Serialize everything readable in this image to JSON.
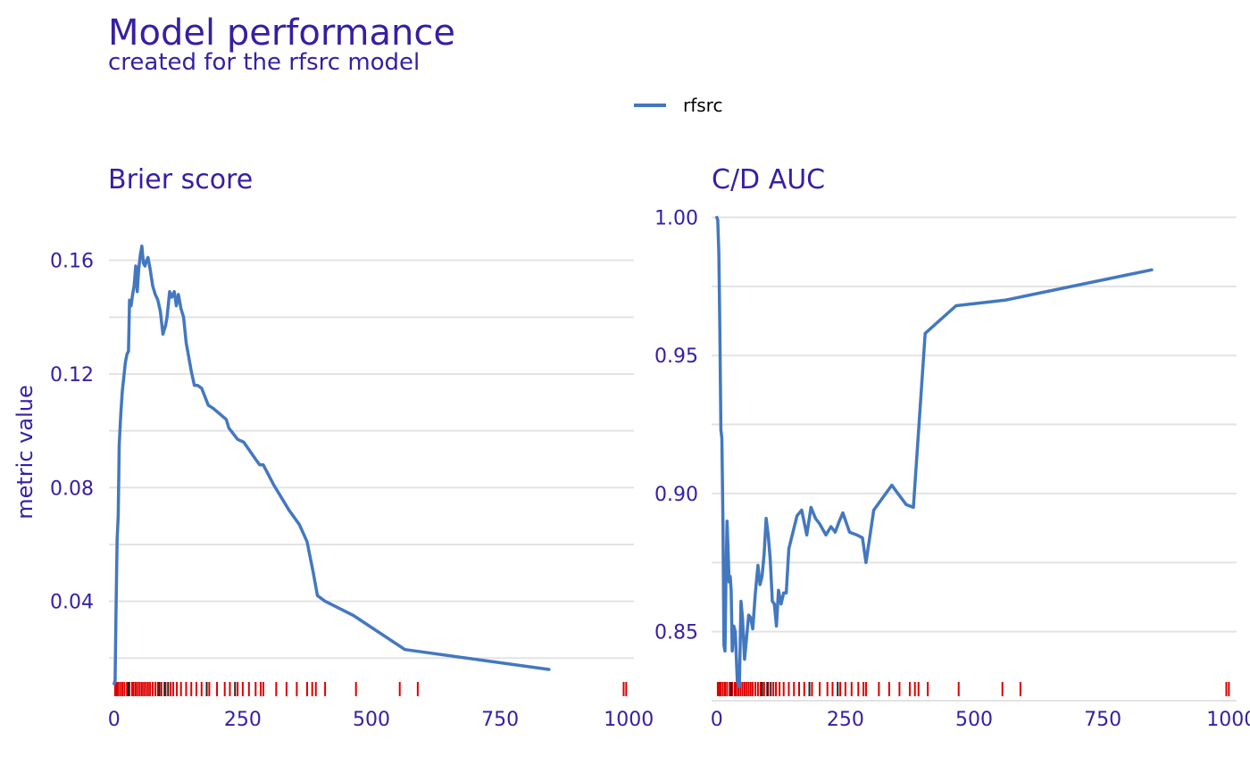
{
  "figure": {
    "title": "Model performance",
    "subtitle": "created for the rfsrc model"
  },
  "legend": {
    "label": "rfsrc",
    "color": "#4378bf",
    "position": "top"
  },
  "colors": {
    "text": "#371ea3",
    "line": "#4378bf",
    "rug_event": "#dd0000",
    "rug_censored": "#222222",
    "grid": "#e3e3e5"
  },
  "chart_data": [
    {
      "type": "line",
      "title": "Brier score",
      "xlabel": "",
      "ylabel": "metric value",
      "xlim": [
        -10,
        1010
      ],
      "ylim": [
        0.005,
        0.18
      ],
      "xticks": [
        0,
        250,
        500,
        750,
        1000
      ],
      "xtick_labels": [
        "0",
        "250",
        "500",
        "750",
        "1000"
      ],
      "yticks": [
        0.04,
        0.08,
        0.12,
        0.16
      ],
      "ytick_labels": [
        "0.04",
        "0.08",
        "0.12",
        "0.16"
      ],
      "yminor": [
        0.02,
        0.06,
        0.1,
        0.14
      ],
      "grid": true,
      "series": [
        {
          "name": "rfsrc",
          "x": [
            0,
            2,
            4,
            6,
            8,
            10,
            13,
            16,
            19,
            22,
            25,
            28,
            30,
            33,
            36,
            39,
            42,
            45,
            48,
            51,
            54,
            57,
            60,
            63,
            66,
            70,
            75,
            80,
            85,
            90,
            95,
            100,
            103,
            108,
            112,
            117,
            121,
            125,
            130,
            135,
            140,
            145,
            150,
            156,
            162,
            170,
            183,
            192,
            205,
            218,
            223,
            240,
            252,
            275,
            283,
            290,
            310,
            340,
            360,
            375,
            387,
            395,
            410,
            465,
            565,
            845
          ],
          "y": [
            0.011,
            0.012,
            0.04,
            0.062,
            0.07,
            0.095,
            0.106,
            0.114,
            0.119,
            0.124,
            0.127,
            0.128,
            0.146,
            0.144,
            0.148,
            0.151,
            0.158,
            0.149,
            0.157,
            0.162,
            0.165,
            0.159,
            0.158,
            0.16,
            0.161,
            0.157,
            0.151,
            0.148,
            0.146,
            0.142,
            0.134,
            0.137,
            0.14,
            0.149,
            0.147,
            0.149,
            0.144,
            0.148,
            0.143,
            0.14,
            0.131,
            0.126,
            0.121,
            0.116,
            0.116,
            0.115,
            0.109,
            0.108,
            0.106,
            0.104,
            0.101,
            0.097,
            0.096,
            0.09,
            0.088,
            0.088,
            0.081,
            0.072,
            0.067,
            0.061,
            0.05,
            0.042,
            0.04,
            0.035,
            0.023,
            0.016
          ]
        }
      ],
      "rug": {
        "event_times": [
          2,
          5,
          8,
          12,
          16,
          20,
          25,
          30,
          35,
          38,
          42,
          46,
          50,
          54,
          58,
          62,
          66,
          70,
          75,
          80,
          85,
          92,
          100,
          110,
          115,
          122,
          130,
          140,
          150,
          160,
          170,
          185,
          200,
          215,
          225,
          240,
          250,
          262,
          275,
          285,
          290,
          315,
          335,
          355,
          375,
          385,
          392,
          410,
          470,
          555,
          590,
          990,
          995
        ],
        "censored_times": [
          28,
          88,
          98,
          105,
          180,
          235
        ]
      }
    },
    {
      "type": "line",
      "title": "C/D AUC",
      "xlabel": "",
      "ylabel": "",
      "xlim": [
        -10,
        1010
      ],
      "ylim": [
        0.825,
        1.005
      ],
      "xticks": [
        0,
        250,
        500,
        750,
        1000
      ],
      "xtick_labels": [
        "0",
        "250",
        "500",
        "750",
        "1000"
      ],
      "yticks": [
        0.85,
        0.9,
        0.95,
        1.0
      ],
      "ytick_labels": [
        "0.85",
        "0.90",
        "0.95",
        "1.00"
      ],
      "yminor": [
        0.825,
        0.875,
        0.925,
        0.975
      ],
      "grid": true,
      "series": [
        {
          "name": "rfsrc",
          "x": [
            0,
            2,
            4,
            6,
            8,
            10,
            12,
            14,
            16,
            18,
            20,
            22,
            24,
            26,
            28,
            30,
            33,
            36,
            40,
            44,
            47,
            50,
            54,
            58,
            62,
            66,
            70,
            75,
            80,
            84,
            88,
            92,
            96,
            100,
            104,
            108,
            112,
            116,
            120,
            125,
            130,
            135,
            140,
            148,
            156,
            165,
            175,
            183,
            192,
            200,
            212,
            222,
            230,
            238,
            245,
            258,
            272,
            283,
            290,
            305,
            340,
            368,
            382,
            405,
            465,
            560,
            845
          ],
          "y": [
            1.0,
            0.999,
            0.987,
            0.96,
            0.923,
            0.92,
            0.89,
            0.845,
            0.843,
            0.87,
            0.89,
            0.88,
            0.868,
            0.87,
            0.865,
            0.843,
            0.852,
            0.85,
            0.832,
            0.83,
            0.861,
            0.855,
            0.84,
            0.848,
            0.856,
            0.855,
            0.851,
            0.864,
            0.874,
            0.867,
            0.87,
            0.878,
            0.891,
            0.885,
            0.876,
            0.861,
            0.86,
            0.852,
            0.865,
            0.86,
            0.864,
            0.864,
            0.88,
            0.886,
            0.892,
            0.894,
            0.885,
            0.895,
            0.891,
            0.889,
            0.885,
            0.888,
            0.886,
            0.89,
            0.893,
            0.886,
            0.885,
            0.884,
            0.875,
            0.894,
            0.903,
            0.896,
            0.895,
            0.958,
            0.968,
            0.97,
            0.981
          ]
        }
      ],
      "rug": {
        "event_times": [
          2,
          5,
          8,
          12,
          16,
          20,
          25,
          30,
          35,
          38,
          42,
          46,
          50,
          54,
          58,
          62,
          66,
          70,
          75,
          80,
          85,
          92,
          100,
          110,
          115,
          122,
          130,
          140,
          150,
          160,
          170,
          185,
          200,
          215,
          225,
          240,
          250,
          262,
          275,
          285,
          290,
          315,
          335,
          355,
          375,
          385,
          392,
          410,
          470,
          555,
          590,
          990,
          995
        ],
        "censored_times": [
          28,
          88,
          98,
          105,
          180,
          235
        ]
      }
    }
  ]
}
